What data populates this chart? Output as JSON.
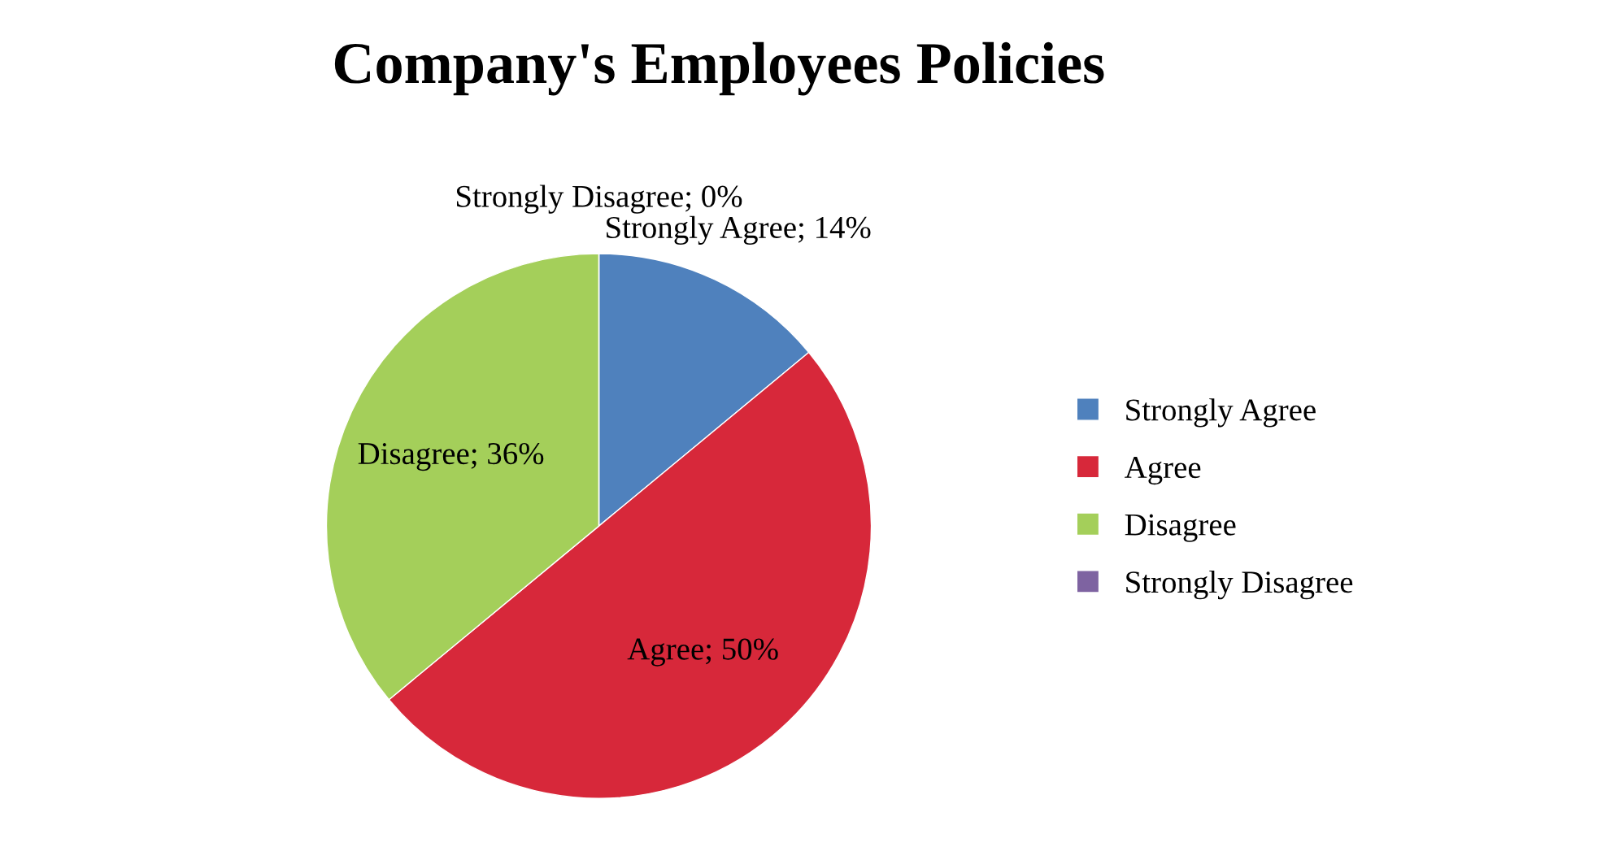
{
  "chart_data": {
    "type": "pie",
    "title": "Company's Employees Policies",
    "categories": [
      "Strongly Agree",
      "Agree",
      "Disagree",
      "Strongly Disagree"
    ],
    "values": [
      14,
      50,
      36,
      0
    ],
    "colors": [
      "#4f81bd",
      "#d7283a",
      "#a4cf5a",
      "#7e63a1"
    ],
    "value_labels": [
      "Strongly Agree; 14%",
      "Agree; 50%",
      "Disagree; 36%",
      "Strongly Disagree; 0%"
    ],
    "legend": "right"
  }
}
